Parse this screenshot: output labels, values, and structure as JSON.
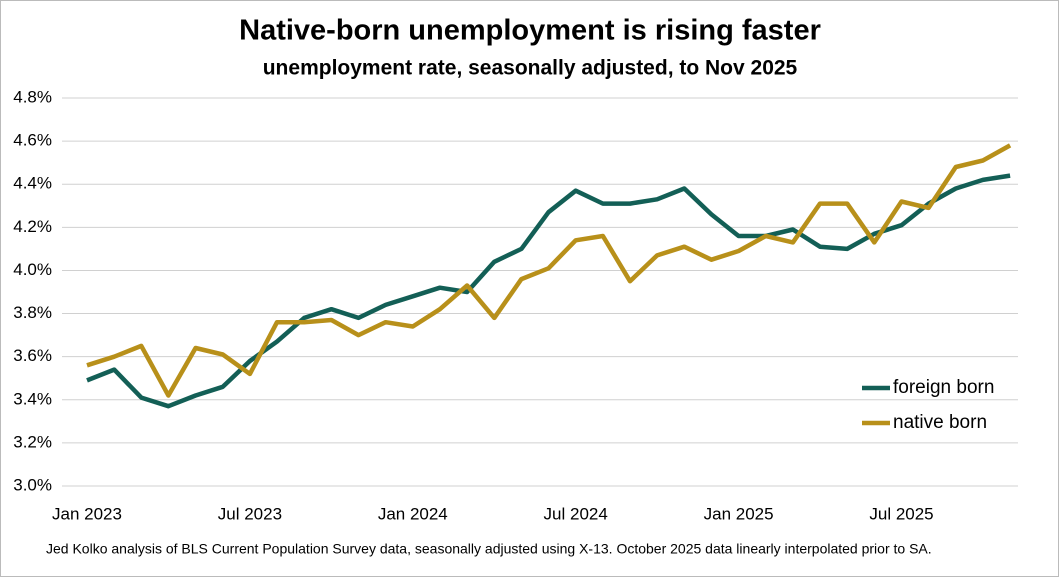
{
  "chart_data": {
    "type": "line",
    "title": "Native-born unemployment is rising faster",
    "subtitle": "unemployment rate, seasonally adjusted, to Nov 2025",
    "note": "Jed Kolko analysis of BLS Current Population Survey data, seasonally adjusted using X-13. October 2025 data linearly interpolated prior to SA.",
    "categories": [
      "Jan 2023",
      null,
      null,
      null,
      null,
      null,
      "Jul 2023",
      null,
      null,
      null,
      null,
      null,
      "Jan 2024",
      null,
      null,
      null,
      null,
      null,
      "Jul 2024",
      null,
      null,
      null,
      null,
      null,
      "Jan 2025",
      null,
      null,
      null,
      null,
      null,
      "Jul 2025",
      null,
      null,
      null,
      null
    ],
    "series": [
      {
        "name": "foreign born",
        "color": "#135f56",
        "values": [
          3.49,
          3.54,
          3.41,
          3.37,
          3.42,
          3.46,
          3.58,
          3.67,
          3.78,
          3.82,
          3.78,
          3.84,
          3.88,
          3.92,
          3.9,
          4.04,
          4.1,
          4.27,
          4.37,
          4.31,
          4.31,
          4.33,
          4.38,
          4.26,
          4.16,
          4.16,
          4.19,
          4.11,
          4.1,
          4.17,
          4.21,
          4.31,
          4.38,
          4.42,
          4.44
        ]
      },
      {
        "name": "native born",
        "color": "#b8901a",
        "values": [
          3.56,
          3.6,
          3.65,
          3.42,
          3.64,
          3.61,
          3.52,
          3.76,
          3.76,
          3.77,
          3.7,
          3.76,
          3.74,
          3.82,
          3.93,
          3.78,
          3.96,
          4.01,
          4.14,
          4.16,
          3.95,
          4.07,
          4.11,
          4.05,
          4.09,
          4.16,
          4.13,
          4.31,
          4.31,
          4.13,
          4.32,
          4.29,
          4.48,
          4.51,
          4.58
        ]
      }
    ],
    "ylim": [
      3.0,
      4.8
    ],
    "yticks": [
      {
        "value": 3.0,
        "label": "3.0%"
      },
      {
        "value": 3.2,
        "label": "3.2%"
      },
      {
        "value": 3.4,
        "label": "3.4%"
      },
      {
        "value": 3.6,
        "label": "3.6%"
      },
      {
        "value": 3.8,
        "label": "3.8%"
      },
      {
        "value": 4.0,
        "label": "4.0%"
      },
      {
        "value": 4.2,
        "label": "4.2%"
      },
      {
        "value": 4.4,
        "label": "4.4%"
      },
      {
        "value": 4.6,
        "label": "4.6%"
      },
      {
        "value": 4.8,
        "label": "4.8%"
      }
    ],
    "grid": true,
    "legend": "lower right"
  }
}
